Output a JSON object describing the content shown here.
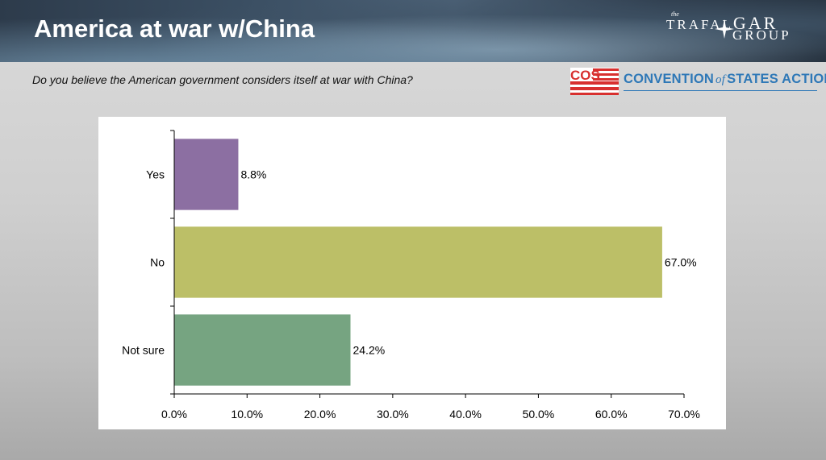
{
  "header": {
    "title": "America at war w/China"
  },
  "logo": {
    "the": "the",
    "line1": "TRAFAL",
    "line1b": "GAR",
    "line2": "GROUP"
  },
  "question": "Do you believe the American government considers itself at war with China?",
  "cos": {
    "badge": "COS",
    "before_of": "CONVENTION",
    "of": "of",
    "after_of": "STATES ACTION"
  },
  "colors": {
    "yes": "#8c6fa2",
    "no": "#bcbf67",
    "not_sure": "#76a481",
    "cos_blue": "#2e78b7",
    "cos_red": "#d8302f"
  },
  "chart_data": {
    "type": "bar",
    "orientation": "horizontal",
    "categories": [
      "Yes",
      "No",
      "Not sure"
    ],
    "values": [
      8.8,
      67.0,
      24.2
    ],
    "value_labels": [
      "8.8%",
      "67.0%",
      "24.2%"
    ],
    "xlim": [
      0,
      70
    ],
    "xticks": [
      "0.0%",
      "10.0%",
      "20.0%",
      "30.0%",
      "40.0%",
      "50.0%",
      "60.0%",
      "70.0%"
    ],
    "title": "",
    "xlabel": "",
    "ylabel": "",
    "grid": false
  }
}
